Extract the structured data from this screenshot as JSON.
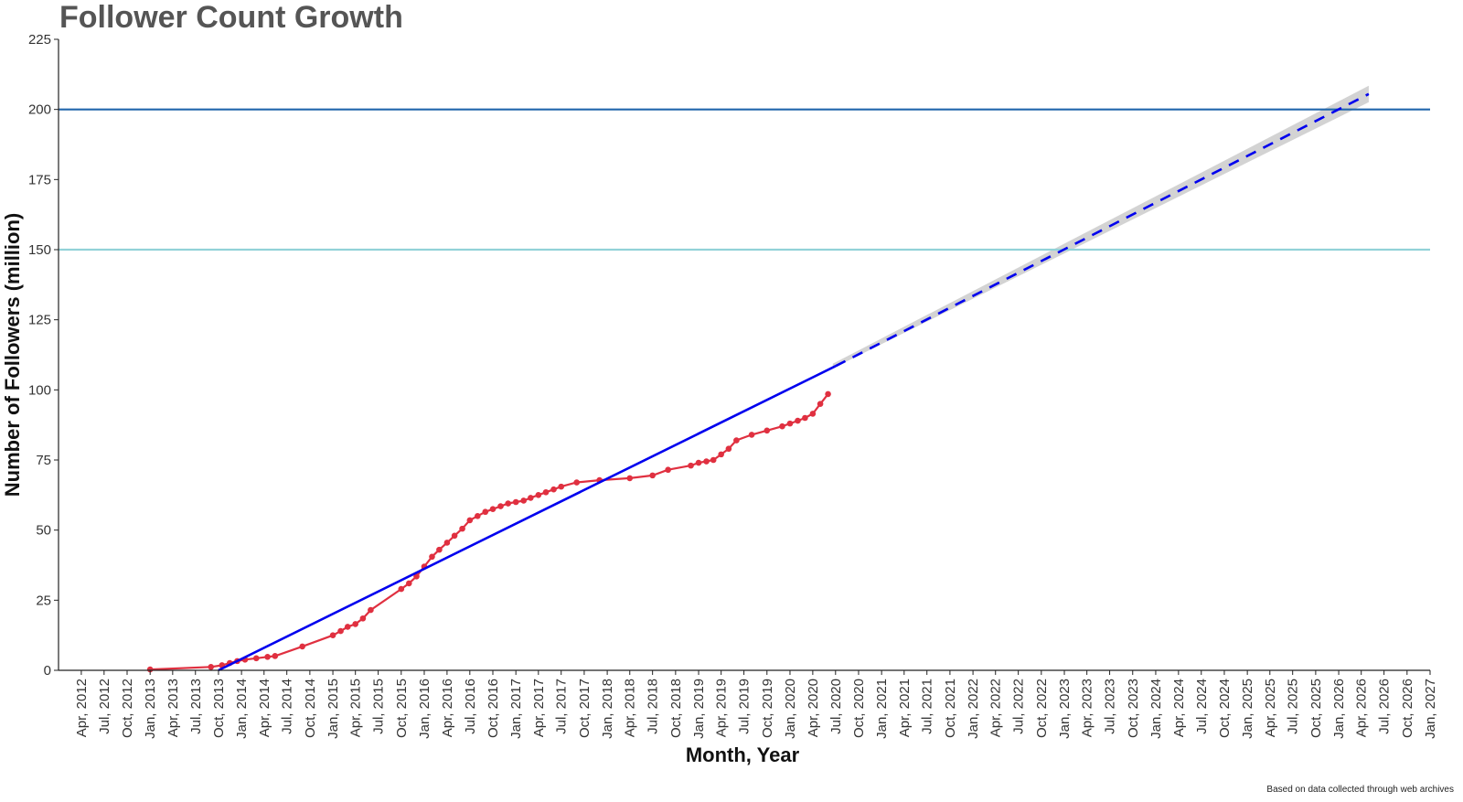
{
  "chart_data": {
    "type": "line",
    "title": "Follower Count Growth",
    "xlabel": "Month, Year",
    "ylabel": "Number of Followers (million)",
    "caption": "Based on data collected through web archives",
    "ylim": [
      0,
      225
    ],
    "y_ticks": [
      0,
      25,
      50,
      75,
      100,
      125,
      150,
      175,
      200,
      225
    ],
    "xlim": [
      "2012-01",
      "2027-01"
    ],
    "x_ticks": [
      "Apr, 2012",
      "Jul, 2012",
      "Oct, 2012",
      "Jan, 2013",
      "Apr, 2013",
      "Jul, 2013",
      "Oct, 2013",
      "Jan, 2014",
      "Apr, 2014",
      "Jul, 2014",
      "Oct, 2014",
      "Jan, 2015",
      "Apr, 2015",
      "Jul, 2015",
      "Oct, 2015",
      "Jan, 2016",
      "Apr, 2016",
      "Jul, 2016",
      "Oct, 2016",
      "Jan, 2017",
      "Apr, 2017",
      "Jul, 2017",
      "Oct, 2017",
      "Jan, 2018",
      "Apr, 2018",
      "Jul, 2018",
      "Oct, 2018",
      "Jan, 2019",
      "Apr, 2019",
      "Jul, 2019",
      "Oct, 2019",
      "Jan, 2020",
      "Apr, 2020",
      "Jul, 2020",
      "Oct, 2020",
      "Jan, 2021",
      "Apr, 2021",
      "Jul, 2021",
      "Oct, 2021",
      "Jan, 2022",
      "Apr, 2022",
      "Jul, 2022",
      "Oct, 2022",
      "Jan, 2023",
      "Apr, 2023",
      "Jul, 2023",
      "Oct, 2023",
      "Jan, 2024",
      "Apr, 2024",
      "Jul, 2024",
      "Oct, 2024",
      "Jan, 2025",
      "Apr, 2025",
      "Jul, 2025",
      "Oct, 2025",
      "Jan, 2026",
      "Apr, 2026",
      "Jul, 2026",
      "Oct, 2026",
      "Jan, 2027"
    ],
    "grid": false,
    "reference_lines": [
      {
        "y": 200,
        "color": "#2166ac"
      },
      {
        "y": 150,
        "color": "#92d2d8"
      }
    ],
    "series": [
      {
        "kind": "observed",
        "color": "#e03040",
        "points": [
          [
            "2013-01-01",
            0.3
          ],
          [
            "2013-09-01",
            1.2
          ],
          [
            "2013-10-15",
            1.8
          ],
          [
            "2013-11-15",
            2.6
          ],
          [
            "2013-12-15",
            3.3
          ],
          [
            "2014-01-15",
            3.8
          ],
          [
            "2014-03-01",
            4.3
          ],
          [
            "2014-04-15",
            4.8
          ],
          [
            "2014-05-15",
            5.1
          ],
          [
            "2014-09-01",
            8.5
          ],
          [
            "2015-01-01",
            12.5
          ],
          [
            "2015-02-01",
            14.0
          ],
          [
            "2015-03-01",
            15.5
          ],
          [
            "2015-04-01",
            16.5
          ],
          [
            "2015-05-01",
            18.5
          ],
          [
            "2015-06-01",
            21.5
          ],
          [
            "2015-10-01",
            29.0
          ],
          [
            "2015-11-01",
            31.0
          ],
          [
            "2015-12-01",
            33.5
          ],
          [
            "2016-01-01",
            37.0
          ],
          [
            "2016-02-01",
            40.5
          ],
          [
            "2016-03-01",
            43.0
          ],
          [
            "2016-04-01",
            45.5
          ],
          [
            "2016-05-01",
            48.0
          ],
          [
            "2016-06-01",
            50.5
          ],
          [
            "2016-07-01",
            53.5
          ],
          [
            "2016-08-01",
            55.0
          ],
          [
            "2016-09-01",
            56.5
          ],
          [
            "2016-10-01",
            57.5
          ],
          [
            "2016-11-01",
            58.5
          ],
          [
            "2016-12-01",
            59.5
          ],
          [
            "2017-01-01",
            60.0
          ],
          [
            "2017-02-01",
            60.5
          ],
          [
            "2017-03-01",
            61.5
          ],
          [
            "2017-04-01",
            62.5
          ],
          [
            "2017-05-01",
            63.5
          ],
          [
            "2017-06-01",
            64.5
          ],
          [
            "2017-07-01",
            65.5
          ],
          [
            "2017-09-01",
            67.0
          ],
          [
            "2017-12-01",
            67.8
          ],
          [
            "2018-04-01",
            68.5
          ],
          [
            "2018-07-01",
            69.5
          ],
          [
            "2018-09-01",
            71.5
          ],
          [
            "2018-12-01",
            73.0
          ],
          [
            "2019-01-01",
            74.0
          ],
          [
            "2019-02-01",
            74.5
          ],
          [
            "2019-03-01",
            75.0
          ],
          [
            "2019-04-01",
            77.0
          ],
          [
            "2019-05-01",
            79.0
          ],
          [
            "2019-06-01",
            82.0
          ],
          [
            "2019-08-01",
            84.0
          ],
          [
            "2019-10-01",
            85.5
          ],
          [
            "2019-12-01",
            87.0
          ],
          [
            "2020-01-01",
            88.0
          ],
          [
            "2020-02-01",
            89.0
          ],
          [
            "2020-03-01",
            90.0
          ],
          [
            "2020-04-01",
            91.5
          ],
          [
            "2020-05-01",
            95.0
          ],
          [
            "2020-06-01",
            98.5
          ]
        ]
      },
      {
        "kind": "trend",
        "color": "#0000ee",
        "points": [
          [
            "2013-10-01",
            0
          ],
          [
            "2020-07-01",
            108.5
          ]
        ]
      },
      {
        "kind": "forecast",
        "color": "#0000ee",
        "dashed": true,
        "confidence_band": true,
        "band_color": "#d3d3d3",
        "points": [
          [
            "2020-07-01",
            108.5
          ],
          [
            "2026-05-01",
            205.5
          ]
        ]
      }
    ]
  }
}
